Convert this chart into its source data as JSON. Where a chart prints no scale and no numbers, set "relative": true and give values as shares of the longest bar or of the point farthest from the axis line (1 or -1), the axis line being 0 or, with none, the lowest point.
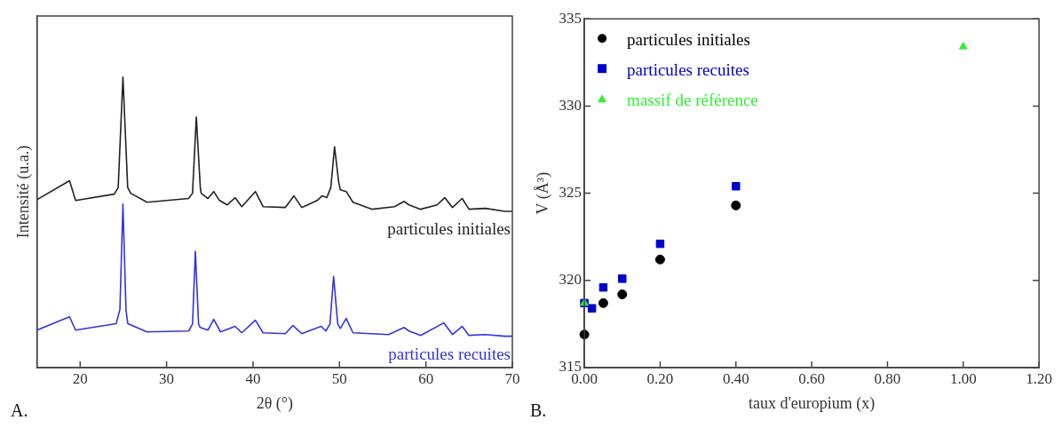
{
  "chart_data": [
    {
      "type": "line",
      "relative": true,
      "xlabel": "2θ (°)",
      "ylabel": "Intensité (u.a.)",
      "xlim": [
        15,
        70
      ],
      "xticks": [
        20,
        30,
        40,
        50,
        60,
        70
      ],
      "grid": false,
      "legend": false,
      "tick_labels": "x",
      "marker": "none",
      "line_style": "solid",
      "annotations": [
        "A."
      ],
      "series": [
        {
          "name": "particules initiales",
          "color": "#222222",
          "x": [
            15.0,
            18.77,
            19.47,
            23.94,
            24.4,
            24.95,
            25.5,
            25.84,
            27.74,
            32.55,
            33.0,
            33.44,
            33.9,
            34.0,
            34.78,
            35.45,
            36.12,
            37.02,
            37.92,
            38.7,
            40.27,
            41.16,
            43.73,
            44.74,
            45.63,
            47.42,
            47.98,
            48.54,
            49.0,
            49.43,
            49.9,
            50.1,
            50.78,
            51.56,
            53.79,
            56.37,
            57.48,
            58.04,
            59.39,
            61.29,
            62.18,
            63.08,
            64.19,
            64.98,
            66.88,
            69.11,
            70.0
          ],
          "values": [
            0.578,
            0.643,
            0.575,
            0.597,
            0.62,
            1.0,
            0.62,
            0.6,
            0.569,
            0.582,
            0.6,
            0.862,
            0.62,
            0.6,
            0.582,
            0.606,
            0.575,
            0.56,
            0.585,
            0.554,
            0.606,
            0.554,
            0.551,
            0.591,
            0.551,
            0.575,
            0.591,
            0.585,
            0.62,
            0.76,
            0.64,
            0.612,
            0.606,
            0.569,
            0.545,
            0.554,
            0.572,
            0.56,
            0.545,
            0.56,
            0.585,
            0.551,
            0.582,
            0.545,
            0.548,
            0.538,
            0.538
          ]
        },
        {
          "name": "particules recuites",
          "color": "#3333dd",
          "x": [
            15.0,
            18.77,
            19.47,
            24.17,
            24.6,
            24.95,
            25.3,
            25.51,
            27.74,
            32.55,
            33.0,
            33.33,
            33.7,
            33.89,
            34.78,
            35.45,
            36.24,
            37.92,
            38.7,
            40.27,
            41.16,
            43.73,
            44.63,
            45.63,
            47.87,
            48.43,
            48.9,
            49.32,
            49.8,
            50.1,
            50.78,
            51.56,
            55.69,
            57.48,
            58.04,
            59.39,
            62.07,
            63.08,
            64.19,
            64.98,
            66.88,
            69.11,
            70.0
          ],
          "values": [
            0.129,
            0.175,
            0.129,
            0.151,
            0.2,
            0.563,
            0.2,
            0.151,
            0.123,
            0.126,
            0.15,
            0.4,
            0.15,
            0.138,
            0.129,
            0.166,
            0.123,
            0.142,
            0.12,
            0.163,
            0.12,
            0.117,
            0.145,
            0.117,
            0.142,
            0.126,
            0.15,
            0.314,
            0.15,
            0.135,
            0.169,
            0.12,
            0.114,
            0.138,
            0.126,
            0.111,
            0.154,
            0.114,
            0.142,
            0.111,
            0.114,
            0.108,
            0.108
          ]
        }
      ]
    },
    {
      "type": "scatter",
      "xlabel": "taux d'europium (x)",
      "ylabel": "V (Å³)",
      "xlim": [
        0,
        1.2
      ],
      "ylim": [
        315,
        335
      ],
      "xticks": [
        {
          "value": 0,
          "label": "0.00"
        },
        {
          "value": 0.2,
          "label": "0.20"
        },
        {
          "value": 0.4,
          "label": "0.40"
        },
        {
          "value": 0.6,
          "label": "0.60"
        },
        {
          "value": 0.8,
          "label": "0.80"
        },
        {
          "value": 1,
          "label": "1.00"
        },
        {
          "value": 1.2,
          "label": "1.20"
        }
      ],
      "yticks": [
        315,
        320,
        325,
        330,
        335
      ],
      "grid": false,
      "legend": "top left",
      "annotations": [
        "B."
      ],
      "series": [
        {
          "name": "particules initiales",
          "color": "#000000",
          "marker": "circle",
          "x": [
            0,
            0.05,
            0.1,
            0.2,
            0.4
          ],
          "values": [
            316.9,
            318.7,
            319.2,
            321.2,
            324.3
          ]
        },
        {
          "name": "particules recuites",
          "color": "#0000cc",
          "marker": "square",
          "x": [
            0,
            0.02,
            0.05,
            0.1,
            0.2,
            0.4
          ],
          "values": [
            318.7,
            318.4,
            319.6,
            320.1,
            322.1,
            325.4
          ]
        },
        {
          "name": "massif de référence",
          "color": "#33ee33",
          "marker": "triangle",
          "x": [
            0,
            1
          ],
          "values": [
            318.7,
            333.4
          ]
        }
      ]
    }
  ]
}
